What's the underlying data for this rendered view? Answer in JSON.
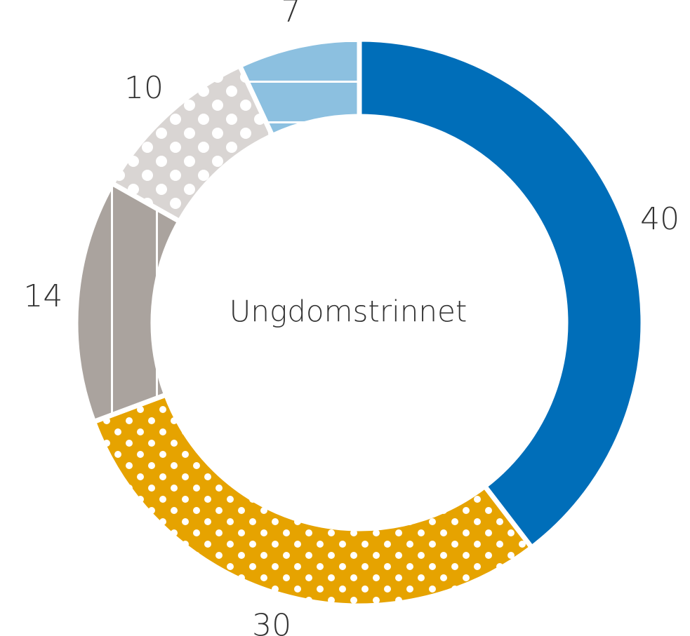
{
  "chart_data": {
    "type": "donut",
    "center_label": "Ungdomstrinnet",
    "slices": [
      {
        "value": 40,
        "color": "#006eb9",
        "pattern": "none"
      },
      {
        "value": 30,
        "color": "#e6a300",
        "pattern": "dots"
      },
      {
        "value": 14,
        "color": "#aaa39e",
        "pattern": "vlines"
      },
      {
        "value": 10,
        "color": "#d9d5d3",
        "pattern": "bigdots"
      },
      {
        "value": 7,
        "color": "#8cc0e0",
        "pattern": "hlines"
      }
    ]
  }
}
